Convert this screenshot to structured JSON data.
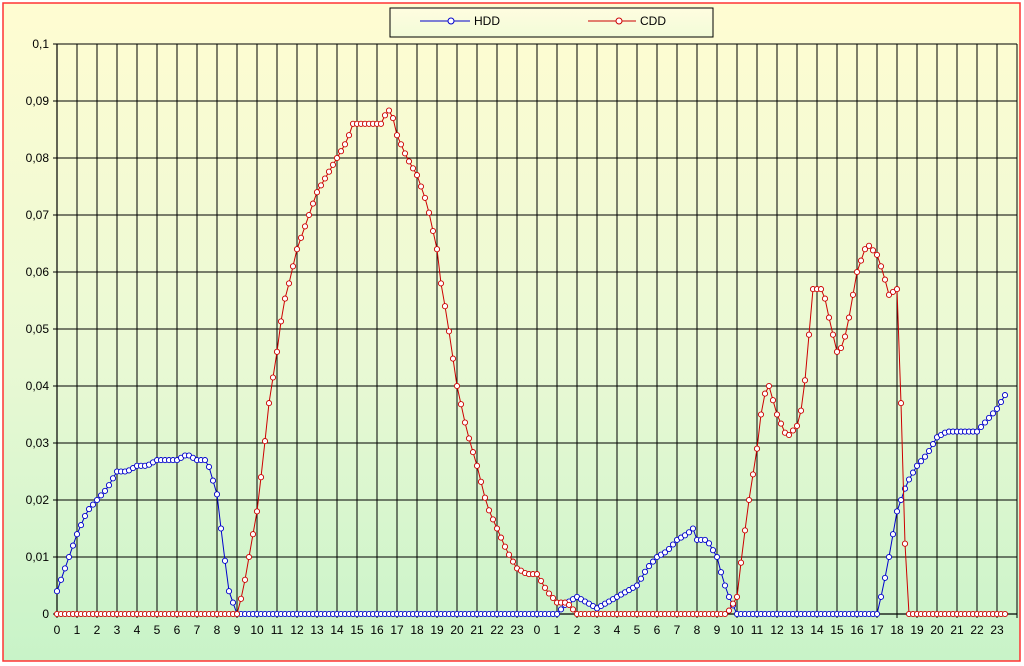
{
  "chart_data": {
    "type": "line",
    "title": "",
    "xlabel": "",
    "ylabel": "",
    "ylim": [
      0,
      0.1
    ],
    "y_ticks": [
      "0",
      "0,01",
      "0,02",
      "0,03",
      "0,04",
      "0,05",
      "0,06",
      "0,07",
      "0,08",
      "0,09",
      "0,1"
    ],
    "x_ticks": [
      "0",
      "1",
      "2",
      "3",
      "4",
      "5",
      "6",
      "7",
      "8",
      "9",
      "10",
      "11",
      "12",
      "13",
      "14",
      "15",
      "16",
      "17",
      "18",
      "19",
      "20",
      "21",
      "22",
      "23",
      "0",
      "1",
      "2",
      "3",
      "4",
      "5",
      "6",
      "7",
      "8",
      "9",
      "10",
      "11",
      "12",
      "13",
      "14",
      "15",
      "16",
      "17",
      "18",
      "19",
      "20",
      "21",
      "22",
      "23"
    ],
    "grid": true,
    "legend_position": "top-center",
    "series": [
      {
        "name": "HDD",
        "color": "#0000cc",
        "points": [
          [
            0,
            0.004
          ],
          [
            0.5,
            0.009
          ],
          [
            1,
            0.014
          ],
          [
            1.5,
            0.018
          ],
          [
            2,
            0.02
          ],
          [
            2.5,
            0.022
          ],
          [
            3,
            0.025
          ],
          [
            3.5,
            0.025
          ],
          [
            4,
            0.026
          ],
          [
            4.5,
            0.026
          ],
          [
            5,
            0.027
          ],
          [
            5.5,
            0.027
          ],
          [
            6,
            0.027
          ],
          [
            6.5,
            0.028
          ],
          [
            7,
            0.027
          ],
          [
            7.5,
            0.027
          ],
          [
            8,
            0.021
          ],
          [
            8.3,
            0.012
          ],
          [
            8.6,
            0.004
          ],
          [
            9,
            0.0
          ],
          [
            10,
            0.0
          ],
          [
            12,
            0.0
          ],
          [
            14,
            0.0
          ],
          [
            16,
            0.0
          ],
          [
            18,
            0.0
          ],
          [
            20,
            0.0
          ],
          [
            22,
            0.0
          ],
          [
            24,
            0.0
          ],
          [
            25,
            0.0
          ],
          [
            25.5,
            0.002
          ],
          [
            26,
            0.003
          ],
          [
            26.5,
            0.002
          ],
          [
            27,
            0.001
          ],
          [
            27.5,
            0.002
          ],
          [
            28,
            0.003
          ],
          [
            28.5,
            0.004
          ],
          [
            29,
            0.005
          ],
          [
            29.5,
            0.008
          ],
          [
            30,
            0.01
          ],
          [
            30.5,
            0.011
          ],
          [
            31,
            0.013
          ],
          [
            31.5,
            0.014
          ],
          [
            31.8,
            0.015
          ],
          [
            32,
            0.013
          ],
          [
            32.5,
            0.013
          ],
          [
            33,
            0.01
          ],
          [
            33.3,
            0.006
          ],
          [
            33.6,
            0.003
          ],
          [
            34,
            0.0
          ],
          [
            36,
            0.0
          ],
          [
            38,
            0.0
          ],
          [
            40,
            0.0
          ],
          [
            41,
            0.0
          ],
          [
            41.2,
            0.003
          ],
          [
            41.5,
            0.008
          ],
          [
            42,
            0.018
          ],
          [
            42.5,
            0.023
          ],
          [
            43,
            0.026
          ],
          [
            43.5,
            0.028
          ],
          [
            44,
            0.031
          ],
          [
            44.5,
            0.032
          ],
          [
            45,
            0.032
          ],
          [
            45.5,
            0.032
          ],
          [
            46,
            0.032
          ],
          [
            46.5,
            0.034
          ],
          [
            47,
            0.036
          ],
          [
            47.5,
            0.039
          ]
        ]
      },
      {
        "name": "CDD",
        "color": "#cc0000",
        "points": [
          [
            0,
            0.0
          ],
          [
            2,
            0.0
          ],
          [
            4,
            0.0
          ],
          [
            6,
            0.0
          ],
          [
            8,
            0.0
          ],
          [
            9,
            0.0
          ],
          [
            9.3,
            0.004
          ],
          [
            9.6,
            0.01
          ],
          [
            10,
            0.018
          ],
          [
            10.3,
            0.027
          ],
          [
            10.6,
            0.037
          ],
          [
            11,
            0.046
          ],
          [
            11.3,
            0.054
          ],
          [
            11.6,
            0.058
          ],
          [
            12,
            0.064
          ],
          [
            12.5,
            0.069
          ],
          [
            13,
            0.074
          ],
          [
            13.5,
            0.077
          ],
          [
            14,
            0.08
          ],
          [
            14.5,
            0.083
          ],
          [
            14.8,
            0.086
          ],
          [
            15,
            0.086
          ],
          [
            15.5,
            0.086
          ],
          [
            16,
            0.086
          ],
          [
            16.3,
            0.086
          ],
          [
            16.5,
            0.089
          ],
          [
            16.8,
            0.087
          ],
          [
            17,
            0.084
          ],
          [
            17.5,
            0.08
          ],
          [
            18,
            0.077
          ],
          [
            18.5,
            0.072
          ],
          [
            19,
            0.064
          ],
          [
            19.2,
            0.058
          ],
          [
            19.5,
            0.052
          ],
          [
            20,
            0.04
          ],
          [
            20.5,
            0.032
          ],
          [
            21,
            0.026
          ],
          [
            21.5,
            0.019
          ],
          [
            22,
            0.015
          ],
          [
            22.5,
            0.011
          ],
          [
            23,
            0.008
          ],
          [
            23.5,
            0.007
          ],
          [
            24,
            0.007
          ],
          [
            24.5,
            0.004
          ],
          [
            25,
            0.002
          ],
          [
            25.5,
            0.002
          ],
          [
            26,
            0.0
          ],
          [
            28,
            0.0
          ],
          [
            30,
            0.0
          ],
          [
            32,
            0.0
          ],
          [
            33.5,
            0.0
          ],
          [
            34,
            0.003
          ],
          [
            34.3,
            0.012
          ],
          [
            34.6,
            0.02
          ],
          [
            35,
            0.029
          ],
          [
            35.3,
            0.038
          ],
          [
            35.6,
            0.04
          ],
          [
            36,
            0.035
          ],
          [
            36.5,
            0.031
          ],
          [
            37,
            0.033
          ],
          [
            37.3,
            0.037
          ],
          [
            37.6,
            0.049
          ],
          [
            37.8,
            0.057
          ],
          [
            38,
            0.057
          ],
          [
            38.3,
            0.057
          ],
          [
            38.6,
            0.052
          ],
          [
            39,
            0.046
          ],
          [
            39.3,
            0.047
          ],
          [
            39.6,
            0.052
          ],
          [
            40,
            0.06
          ],
          [
            40.5,
            0.065
          ],
          [
            41,
            0.063
          ],
          [
            41.3,
            0.06
          ],
          [
            41.6,
            0.056
          ],
          [
            42,
            0.057
          ],
          [
            42.2,
            0.037
          ],
          [
            42.5,
            0.0
          ],
          [
            44,
            0.0
          ],
          [
            46,
            0.0
          ],
          [
            47.5,
            0.0
          ]
        ]
      }
    ]
  }
}
